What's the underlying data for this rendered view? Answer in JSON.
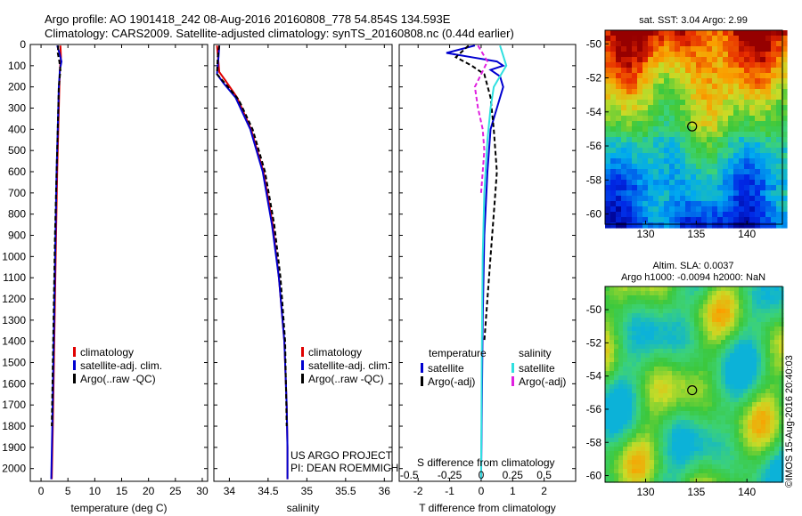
{
  "header": {
    "line1": "Argo profile: AO 1901418_242 08-Aug-2016 20160808_778 54.854S 134.593E",
    "line2": "Climatology: CARS2009. Satellite-adjusted climatology: synTS_20160808.nc (0.44d earlier)"
  },
  "credit": "©IMOS 15-Aug-2016 20:40:03",
  "colors": {
    "climatology": "#e00000",
    "satellite": "#0000d0",
    "argo": "#000000",
    "sal_satellite": "#30e0e0",
    "sal_argo": "#e020e0"
  },
  "chart_data": [
    {
      "type": "line",
      "xlabel": "temperature (deg C)",
      "xlim": [
        -2,
        31
      ],
      "ylim": [
        2060,
        0
      ],
      "xticks": [
        "0",
        "5",
        "10",
        "15",
        "20",
        "25",
        "30"
      ],
      "xtick_values": [
        0,
        5,
        10,
        15,
        20,
        25,
        30
      ],
      "yticks": [
        "0",
        "100",
        "200",
        "300",
        "400",
        "500",
        "600",
        "700",
        "800",
        "900",
        "1000",
        "1100",
        "1200",
        "1300",
        "1400",
        "1500",
        "1600",
        "1700",
        "1800",
        "1900",
        "2000"
      ],
      "ytick_values": [
        0,
        100,
        200,
        300,
        400,
        500,
        600,
        700,
        800,
        900,
        1000,
        1100,
        1200,
        1300,
        1400,
        1500,
        1600,
        1700,
        1800,
        1900,
        2000
      ],
      "legend": [
        "climatology",
        "satellite-adj. clim.",
        "Argo(..raw -QC)"
      ],
      "legend_colors": [
        "#e00000",
        "#0000d0",
        "#000000"
      ],
      "series": [
        {
          "name": "climatology",
          "color": "#e00000",
          "x": [
            3.6,
            3.7,
            3.5,
            3.4,
            3.2,
            3.0,
            2.8,
            2.6,
            2.4,
            2.2,
            2.0
          ],
          "y": [
            5,
            60,
            120,
            200,
            400,
            600,
            900,
            1200,
            1500,
            1800,
            2050
          ]
        },
        {
          "name": "satellite-adj. clim.",
          "color": "#0000d0",
          "x": [
            3.0,
            3.4,
            3.8,
            3.5,
            3.3,
            3.1,
            2.9,
            2.7,
            2.5,
            2.3,
            2.1,
            1.9
          ],
          "y": [
            5,
            40,
            80,
            120,
            200,
            400,
            600,
            900,
            1200,
            1500,
            1800,
            2050
          ]
        },
        {
          "name": "Argo(..raw -QC)",
          "color": "#000000",
          "x": [
            3.2,
            3.1,
            3.4,
            3.6,
            3.3,
            3.1,
            2.9,
            2.6,
            2.4,
            2.2,
            2.0
          ],
          "y": [
            5,
            40,
            80,
            120,
            200,
            400,
            600,
            900,
            1200,
            1500,
            1800
          ],
          "dash": true
        }
      ]
    },
    {
      "type": "line",
      "xlabel": "salinity",
      "xlim": [
        33.8,
        36.1
      ],
      "ylim": [
        2060,
        0
      ],
      "xticks": [
        "34",
        "34.5",
        "35",
        "35.5",
        "36"
      ],
      "xtick_values": [
        34,
        34.5,
        35,
        35.5,
        36
      ],
      "legend": [
        "climatology",
        "satellite-adj. clim.",
        "Argo(..raw -QC)"
      ],
      "legend_colors": [
        "#e00000",
        "#0000d0",
        "#000000"
      ],
      "annotations": [
        "US ARGO PROJECT",
        "PI: DEAN ROEMMICH"
      ],
      "series": [
        {
          "name": "climatology",
          "color": "#e00000",
          "x": [
            33.84,
            33.87,
            33.95,
            34.1,
            34.28,
            34.44,
            34.56,
            34.64,
            34.71,
            34.74,
            34.75,
            34.75
          ],
          "y": [
            5,
            130,
            170,
            250,
            400,
            600,
            850,
            1100,
            1400,
            1700,
            1900,
            2050
          ]
        },
        {
          "name": "satellite-adj. clim.",
          "color": "#0000d0",
          "x": [
            33.87,
            33.86,
            33.84,
            33.92,
            34.08,
            34.27,
            34.43,
            34.55,
            34.64,
            34.71,
            34.74,
            34.75,
            34.75
          ],
          "y": [
            5,
            60,
            140,
            180,
            250,
            400,
            600,
            850,
            1100,
            1400,
            1700,
            1900,
            2050
          ]
        },
        {
          "name": "Argo(..raw -QC)",
          "color": "#000000",
          "x": [
            33.87,
            33.85,
            33.84,
            33.96,
            34.12,
            34.3,
            34.46,
            34.58,
            34.66,
            34.72,
            34.74
          ],
          "y": [
            5,
            60,
            140,
            190,
            260,
            400,
            600,
            850,
            1100,
            1400,
            1800
          ],
          "dash": true
        }
      ]
    },
    {
      "type": "line",
      "xlabel": "T difference from climatology",
      "xlim": [
        -2.6,
        3.0
      ],
      "ylim": [
        2060,
        0
      ],
      "xticks": [
        "-2",
        "-1",
        "0",
        "1",
        "2"
      ],
      "xtick_values": [
        -2,
        -1,
        0,
        1,
        2
      ],
      "s_label": "S difference from climatology",
      "s_ticks": [
        "-0.5",
        "-0.25",
        "0",
        "0.25",
        "0.5"
      ],
      "s_tick_values": [
        -2,
        -1,
        0,
        1,
        2
      ],
      "legend_titles": [
        "temperature",
        "salinity"
      ],
      "legend": [
        "satellite",
        "Argo(-adj)",
        "satellite",
        "Argo(-adj)"
      ],
      "legend_colors": [
        "#0000d0",
        "#000000",
        "#30e0e0",
        "#e020e0"
      ],
      "series": [
        {
          "name": "satellite",
          "color": "#0000d0",
          "x": [
            -0.2,
            -1.1,
            -0.3,
            0.5,
            0.7,
            0.3,
            0.6,
            0.7,
            0.5,
            0.3,
            0.2,
            0.1,
            0.05,
            0.0
          ],
          "y": [
            5,
            40,
            60,
            80,
            100,
            120,
            150,
            200,
            300,
            400,
            600,
            900,
            1300,
            2050
          ]
        },
        {
          "name": "Argo(-adj)",
          "color": "#000000",
          "x": [
            -0.4,
            -0.8,
            -0.3,
            0.1,
            0.3,
            0.4,
            0.5,
            0.4,
            0.3,
            0.2,
            0.1
          ],
          "y": [
            5,
            60,
            100,
            140,
            250,
            400,
            600,
            800,
            1000,
            1200,
            1400
          ],
          "dash": true
        },
        {
          "name": "satellite",
          "color": "#30e0e0",
          "x": [
            0.6,
            0.8,
            0.6,
            0.4,
            0.3,
            0.2,
            0.1,
            0.05,
            0.02,
            0.0
          ],
          "y": [
            5,
            100,
            150,
            200,
            300,
            450,
            700,
            1000,
            1500,
            2050
          ]
        },
        {
          "name": "Argo(-adj)",
          "color": "#e020e0",
          "x": [
            -0.1,
            0.2,
            -0.2,
            -0.1,
            0.05,
            0.1,
            0.0
          ],
          "y": [
            5,
            80,
            200,
            300,
            400,
            500,
            700
          ],
          "dash": true
        }
      ]
    },
    {
      "type": "heatmap",
      "title": "sat. SST: 3.04  Argo: 2.99",
      "xticks": [
        "130",
        "135",
        "140"
      ],
      "xtick_values": [
        130,
        135,
        140
      ],
      "yticks": [
        "-50",
        "-52",
        "-54",
        "-56",
        "-58",
        "-60"
      ],
      "ytick_values": [
        -50,
        -52,
        -54,
        -56,
        -58,
        -60
      ],
      "xlim": [
        126,
        143.5
      ],
      "ylim": [
        -60.6,
        -49.2
      ],
      "marker": {
        "lon": 134.593,
        "lat": -54.854
      }
    },
    {
      "type": "heatmap",
      "title": "Altim. SLA: 0.0037",
      "subtitle": "Argo h1000: -0.0094 h2000: NaN",
      "xticks": [
        "130",
        "135",
        "140"
      ],
      "xtick_values": [
        130,
        135,
        140
      ],
      "yticks": [
        "-50",
        "-52",
        "-54",
        "-56",
        "-58",
        "-60"
      ],
      "ytick_values": [
        -50,
        -52,
        -54,
        -56,
        -58,
        -60
      ],
      "xlim": [
        126,
        143.5
      ],
      "ylim": [
        -60.4,
        -48.6
      ],
      "marker": {
        "lon": 134.593,
        "lat": -54.854
      }
    }
  ]
}
